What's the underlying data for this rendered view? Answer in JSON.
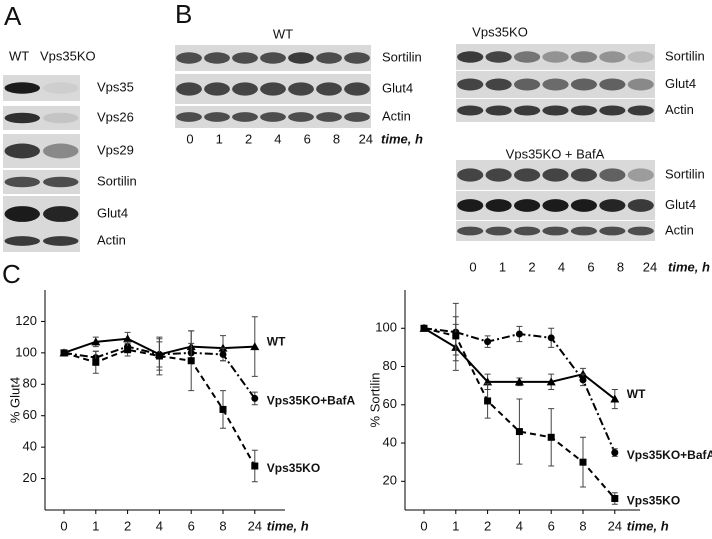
{
  "panels": {
    "A": {
      "label": "A",
      "lanes": [
        "WT",
        "Vps35KO"
      ],
      "rows": [
        "Vps35",
        "Vps26",
        "Vps29",
        "Sortilin",
        "Glut4",
        "Actin"
      ]
    },
    "B": {
      "label": "B",
      "blots": [
        {
          "title": "WT",
          "rows": [
            "Sortilin",
            "Glut4",
            "Actin"
          ],
          "times": [
            "0",
            "1",
            "2",
            "4",
            "6",
            "8",
            "24"
          ],
          "time_label": "time, h"
        },
        {
          "title": "Vps35KO",
          "rows": [
            "Sortilin",
            "Glut4",
            "Actin"
          ]
        },
        {
          "title": "Vps35KO + BafA",
          "rows": [
            "Sortilin",
            "Glut4",
            "Actin"
          ],
          "times": [
            "0",
            "1",
            "2",
            "4",
            "6",
            "8",
            "24"
          ],
          "time_label": "time, h"
        }
      ]
    },
    "C": {
      "label": "C"
    }
  },
  "chart_data": [
    {
      "type": "line",
      "y_label": "% Glut4",
      "x_label": "time, h",
      "categories": [
        "0",
        "1",
        "2",
        "4",
        "6",
        "8",
        "24"
      ],
      "ylim": [
        0,
        140
      ],
      "yticks": [
        20,
        40,
        60,
        80,
        100,
        120
      ],
      "series": [
        {
          "name": "WT",
          "color": "#000000",
          "line_style": "solid",
          "marker": "triangle",
          "values": [
            100,
            107,
            109,
            99,
            104,
            103,
            104
          ],
          "errors": [
            1,
            3,
            4,
            10,
            10,
            8,
            19
          ]
        },
        {
          "name": "Vps35KO+BafA",
          "color": "#000000",
          "line_style": "dashdot",
          "marker": "circle",
          "values": [
            100,
            97,
            104,
            99,
            100,
            99,
            71
          ],
          "errors": [
            1,
            4,
            3,
            8,
            6,
            4,
            4
          ]
        },
        {
          "name": "Vps35KO",
          "color": "#000000",
          "line_style": "dashed",
          "marker": "square",
          "values": [
            100,
            94,
            102,
            98,
            95,
            64,
            28
          ],
          "errors": [
            1,
            7,
            4,
            12,
            19,
            12,
            10
          ]
        }
      ]
    },
    {
      "type": "line",
      "y_label": "% Sortilin",
      "x_label": "time, h",
      "categories": [
        "0",
        "1",
        "2",
        "4",
        "6",
        "8",
        "24"
      ],
      "ylim": [
        5,
        120
      ],
      "yticks": [
        20,
        40,
        60,
        80,
        100
      ],
      "series": [
        {
          "name": "WT",
          "color": "#000000",
          "line_style": "solid",
          "marker": "triangle",
          "values": [
            100,
            90,
            72,
            72,
            72,
            76,
            63
          ],
          "errors": [
            1,
            12,
            4,
            2,
            4,
            3,
            5
          ]
        },
        {
          "name": "Vps35KO+BafA",
          "color": "#000000",
          "line_style": "dashdot",
          "marker": "circle",
          "values": [
            100,
            98,
            93,
            97,
            95,
            73,
            35
          ],
          "errors": [
            1,
            15,
            3,
            4,
            5,
            3,
            2
          ]
        },
        {
          "name": "Vps35KO",
          "color": "#000000",
          "line_style": "dashed",
          "marker": "square",
          "values": [
            100,
            96,
            62,
            46,
            43,
            30,
            11
          ],
          "errors": [
            1,
            10,
            9,
            17,
            15,
            13,
            3
          ]
        }
      ]
    }
  ]
}
